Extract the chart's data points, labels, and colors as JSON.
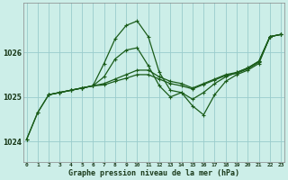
{
  "title": "Graphe pression niveau de la mer (hPa)",
  "background_color": "#cceee8",
  "grid_color": "#99cccc",
  "line_color": "#1a5c1a",
  "x_ticks": [
    0,
    1,
    2,
    3,
    4,
    5,
    6,
    7,
    8,
    9,
    10,
    11,
    12,
    13,
    14,
    15,
    16,
    17,
    18,
    19,
    20,
    21,
    22,
    23
  ],
  "y_ticks": [
    1024,
    1025,
    1026
  ],
  "ylim": [
    1023.55,
    1027.1
  ],
  "xlim": [
    -0.3,
    23.3
  ],
  "series": [
    {
      "x": [
        0,
        1,
        2,
        3,
        4,
        5,
        6,
        7,
        8,
        9,
        10,
        11,
        12,
        13,
        14,
        15,
        16,
        17,
        18,
        19,
        20,
        21,
        22,
        23
      ],
      "y": [
        1024.05,
        1024.65,
        1025.05,
        1025.1,
        1025.15,
        1025.2,
        1025.25,
        1025.75,
        1026.3,
        1026.6,
        1026.7,
        1026.35,
        1025.55,
        1025.15,
        1025.1,
        1024.8,
        1024.6,
        1025.05,
        1025.35,
        1025.5,
        1025.6,
        1025.75,
        1026.35,
        1026.4
      ]
    },
    {
      "x": [
        0,
        1,
        2,
        3,
        4,
        5,
        6,
        7,
        8,
        9,
        10,
        11,
        12,
        13,
        14,
        15,
        16,
        17,
        18,
        19,
        20,
        21,
        22,
        23
      ],
      "y": [
        1024.05,
        1024.65,
        1025.05,
        1025.1,
        1025.15,
        1025.2,
        1025.25,
        1025.45,
        1025.85,
        1026.05,
        1026.1,
        1025.7,
        1025.25,
        1025.0,
        1025.1,
        1024.95,
        1025.1,
        1025.3,
        1025.45,
        1025.55,
        1025.65,
        1025.8,
        1026.35,
        1026.4
      ]
    },
    {
      "x": [
        2,
        3,
        4,
        5,
        6,
        7,
        8,
        9,
        10,
        11,
        12,
        13,
        14,
        15,
        16,
        17,
        18,
        19,
        20,
        21,
        22,
        23
      ],
      "y": [
        1025.05,
        1025.1,
        1025.15,
        1025.2,
        1025.25,
        1025.3,
        1025.4,
        1025.5,
        1025.6,
        1025.6,
        1025.45,
        1025.35,
        1025.3,
        1025.2,
        1025.3,
        1025.4,
        1025.5,
        1025.55,
        1025.65,
        1025.8,
        1026.35,
        1026.4
      ]
    },
    {
      "x": [
        2,
        3,
        4,
        5,
        6,
        7,
        8,
        9,
        10,
        11,
        12,
        13,
        14,
        15,
        16,
        17,
        18,
        19,
        20,
        21,
        22,
        23
      ],
      "y": [
        1025.05,
        1025.1,
        1025.15,
        1025.2,
        1025.25,
        1025.27,
        1025.35,
        1025.42,
        1025.5,
        1025.5,
        1025.4,
        1025.3,
        1025.25,
        1025.18,
        1025.28,
        1025.38,
        1025.48,
        1025.53,
        1025.63,
        1025.78,
        1026.35,
        1026.4
      ]
    }
  ]
}
